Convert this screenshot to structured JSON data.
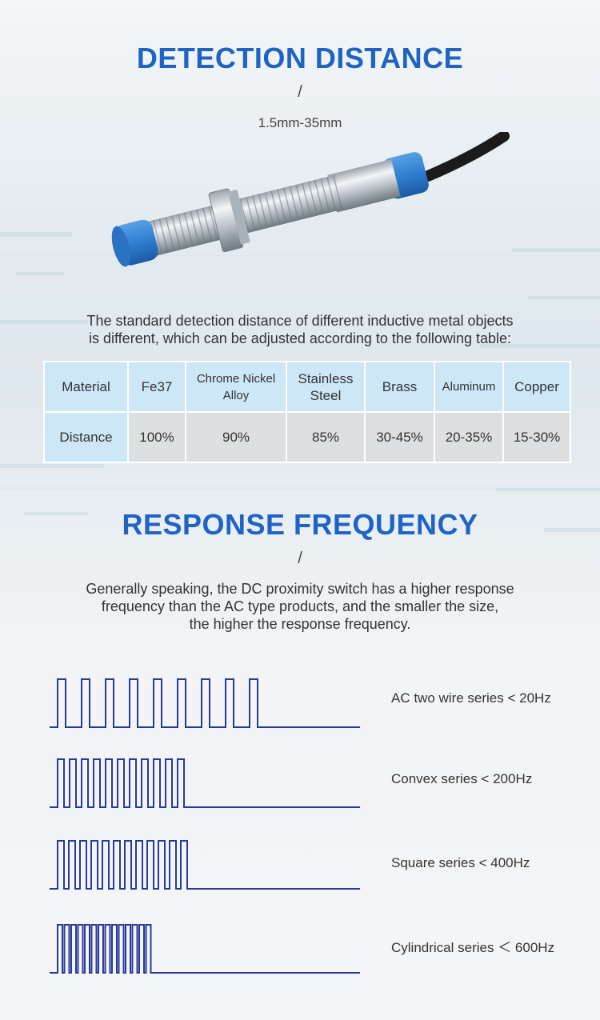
{
  "detection": {
    "title": "DETECTION DISTANCE",
    "slash": "/",
    "range": "1.5mm-35mm",
    "description": [
      "The standard detection distance of different inductive metal objects",
      "is different, which can be adjusted according to the following table:"
    ],
    "table": {
      "header": [
        "Material",
        "Fe37",
        "Chrome Nickel Alloy",
        "Stainless Steel",
        "Brass",
        "Aluminum",
        "Copper"
      ],
      "row": [
        "Distance",
        "100%",
        "90%",
        "85%",
        "30-45%",
        "20-35%",
        "15-30%"
      ]
    }
  },
  "response": {
    "title": "RESPONSE FREQUENCY",
    "slash": "/",
    "description": [
      "Generally speaking, the DC proximity switch has a higher response",
      "frequency than the AC type products, and the smaller the size,",
      "the higher the response frequency."
    ],
    "series": [
      {
        "label": "AC two wire series < 20Hz",
        "pulses": 9
      },
      {
        "label": "Convex series < 200Hz",
        "pulses": 11
      },
      {
        "label": "Square series < 400Hz",
        "pulses": 12
      },
      {
        "label": "Cylindrical series ＜ 600Hz",
        "pulses": 14
      }
    ]
  },
  "colors": {
    "accent": "#1f63c5",
    "wave": "#2a3a9c",
    "cap": "#2f7fd1"
  }
}
